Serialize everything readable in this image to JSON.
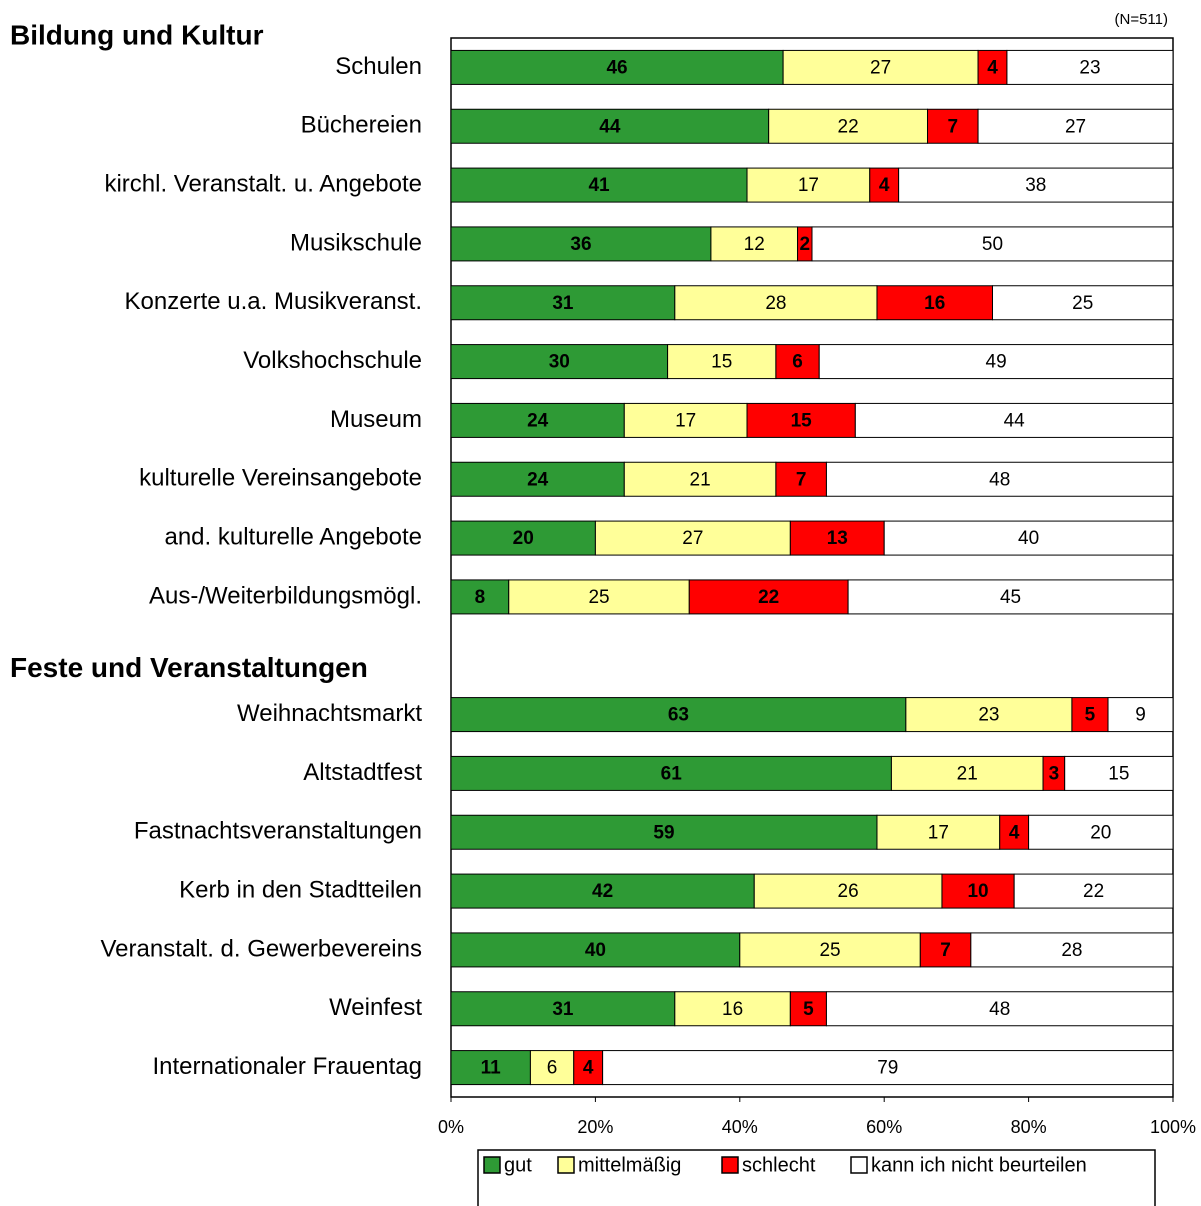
{
  "chart_data": {
    "type": "stacked_barh",
    "note": "(N=511)",
    "group_titles": [
      "Bildung und Kultur",
      "Feste und Veranstaltungen"
    ],
    "categories": [
      "Schulen",
      "Büchereien",
      "kirchl. Veranstalt. u. Angebote",
      "Musikschule",
      "Konzerte u.a. Musikveranst.",
      "Volkshochschule",
      "Museum",
      "kulturelle Vereinsangebote",
      "and. kulturelle Angebote",
      "Aus-/Weiterbildungsmögl.",
      null,
      "Weihnachtsmarkt",
      "Altstadtfest",
      "Fastnachtsveranstaltungen",
      "Kerb in den Stadtteilen",
      "Veranstalt. d. Gewerbevereins",
      "Weinfest",
      "Internationaler Frauentag"
    ],
    "series": [
      {
        "name": "gut",
        "color": "#2e9a35",
        "label_color": "#ffffff",
        "values": [
          46,
          44,
          41,
          36,
          31,
          30,
          24,
          24,
          20,
          8,
          null,
          63,
          61,
          59,
          42,
          40,
          31,
          11
        ]
      },
      {
        "name": "mittelmäßig",
        "color": "#ffff99",
        "label_color": "#000000",
        "values": [
          27,
          22,
          17,
          12,
          28,
          15,
          17,
          21,
          27,
          25,
          null,
          23,
          21,
          17,
          26,
          25,
          16,
          6
        ]
      },
      {
        "name": "schlecht",
        "color": "#ff0000",
        "label_color": "#ffffff",
        "values": [
          4,
          7,
          4,
          2,
          16,
          6,
          15,
          7,
          13,
          22,
          null,
          5,
          3,
          4,
          10,
          7,
          5,
          4
        ]
      },
      {
        "name": "kann ich nicht beurteilen",
        "color": "#ffffff",
        "label_color": "#000000",
        "values": [
          23,
          27,
          38,
          50,
          25,
          49,
          44,
          48,
          40,
          45,
          null,
          9,
          15,
          20,
          22,
          28,
          48,
          79
        ]
      }
    ],
    "xlim": [
      0,
      100
    ],
    "xticks": [
      {
        "value": 0,
        "label": "0%"
      },
      {
        "value": 20,
        "label": "20%"
      },
      {
        "value": 40,
        "label": "40%"
      },
      {
        "value": 60,
        "label": "60%"
      },
      {
        "value": 80,
        "label": "80%"
      },
      {
        "value": 100,
        "label": "100%"
      }
    ]
  }
}
